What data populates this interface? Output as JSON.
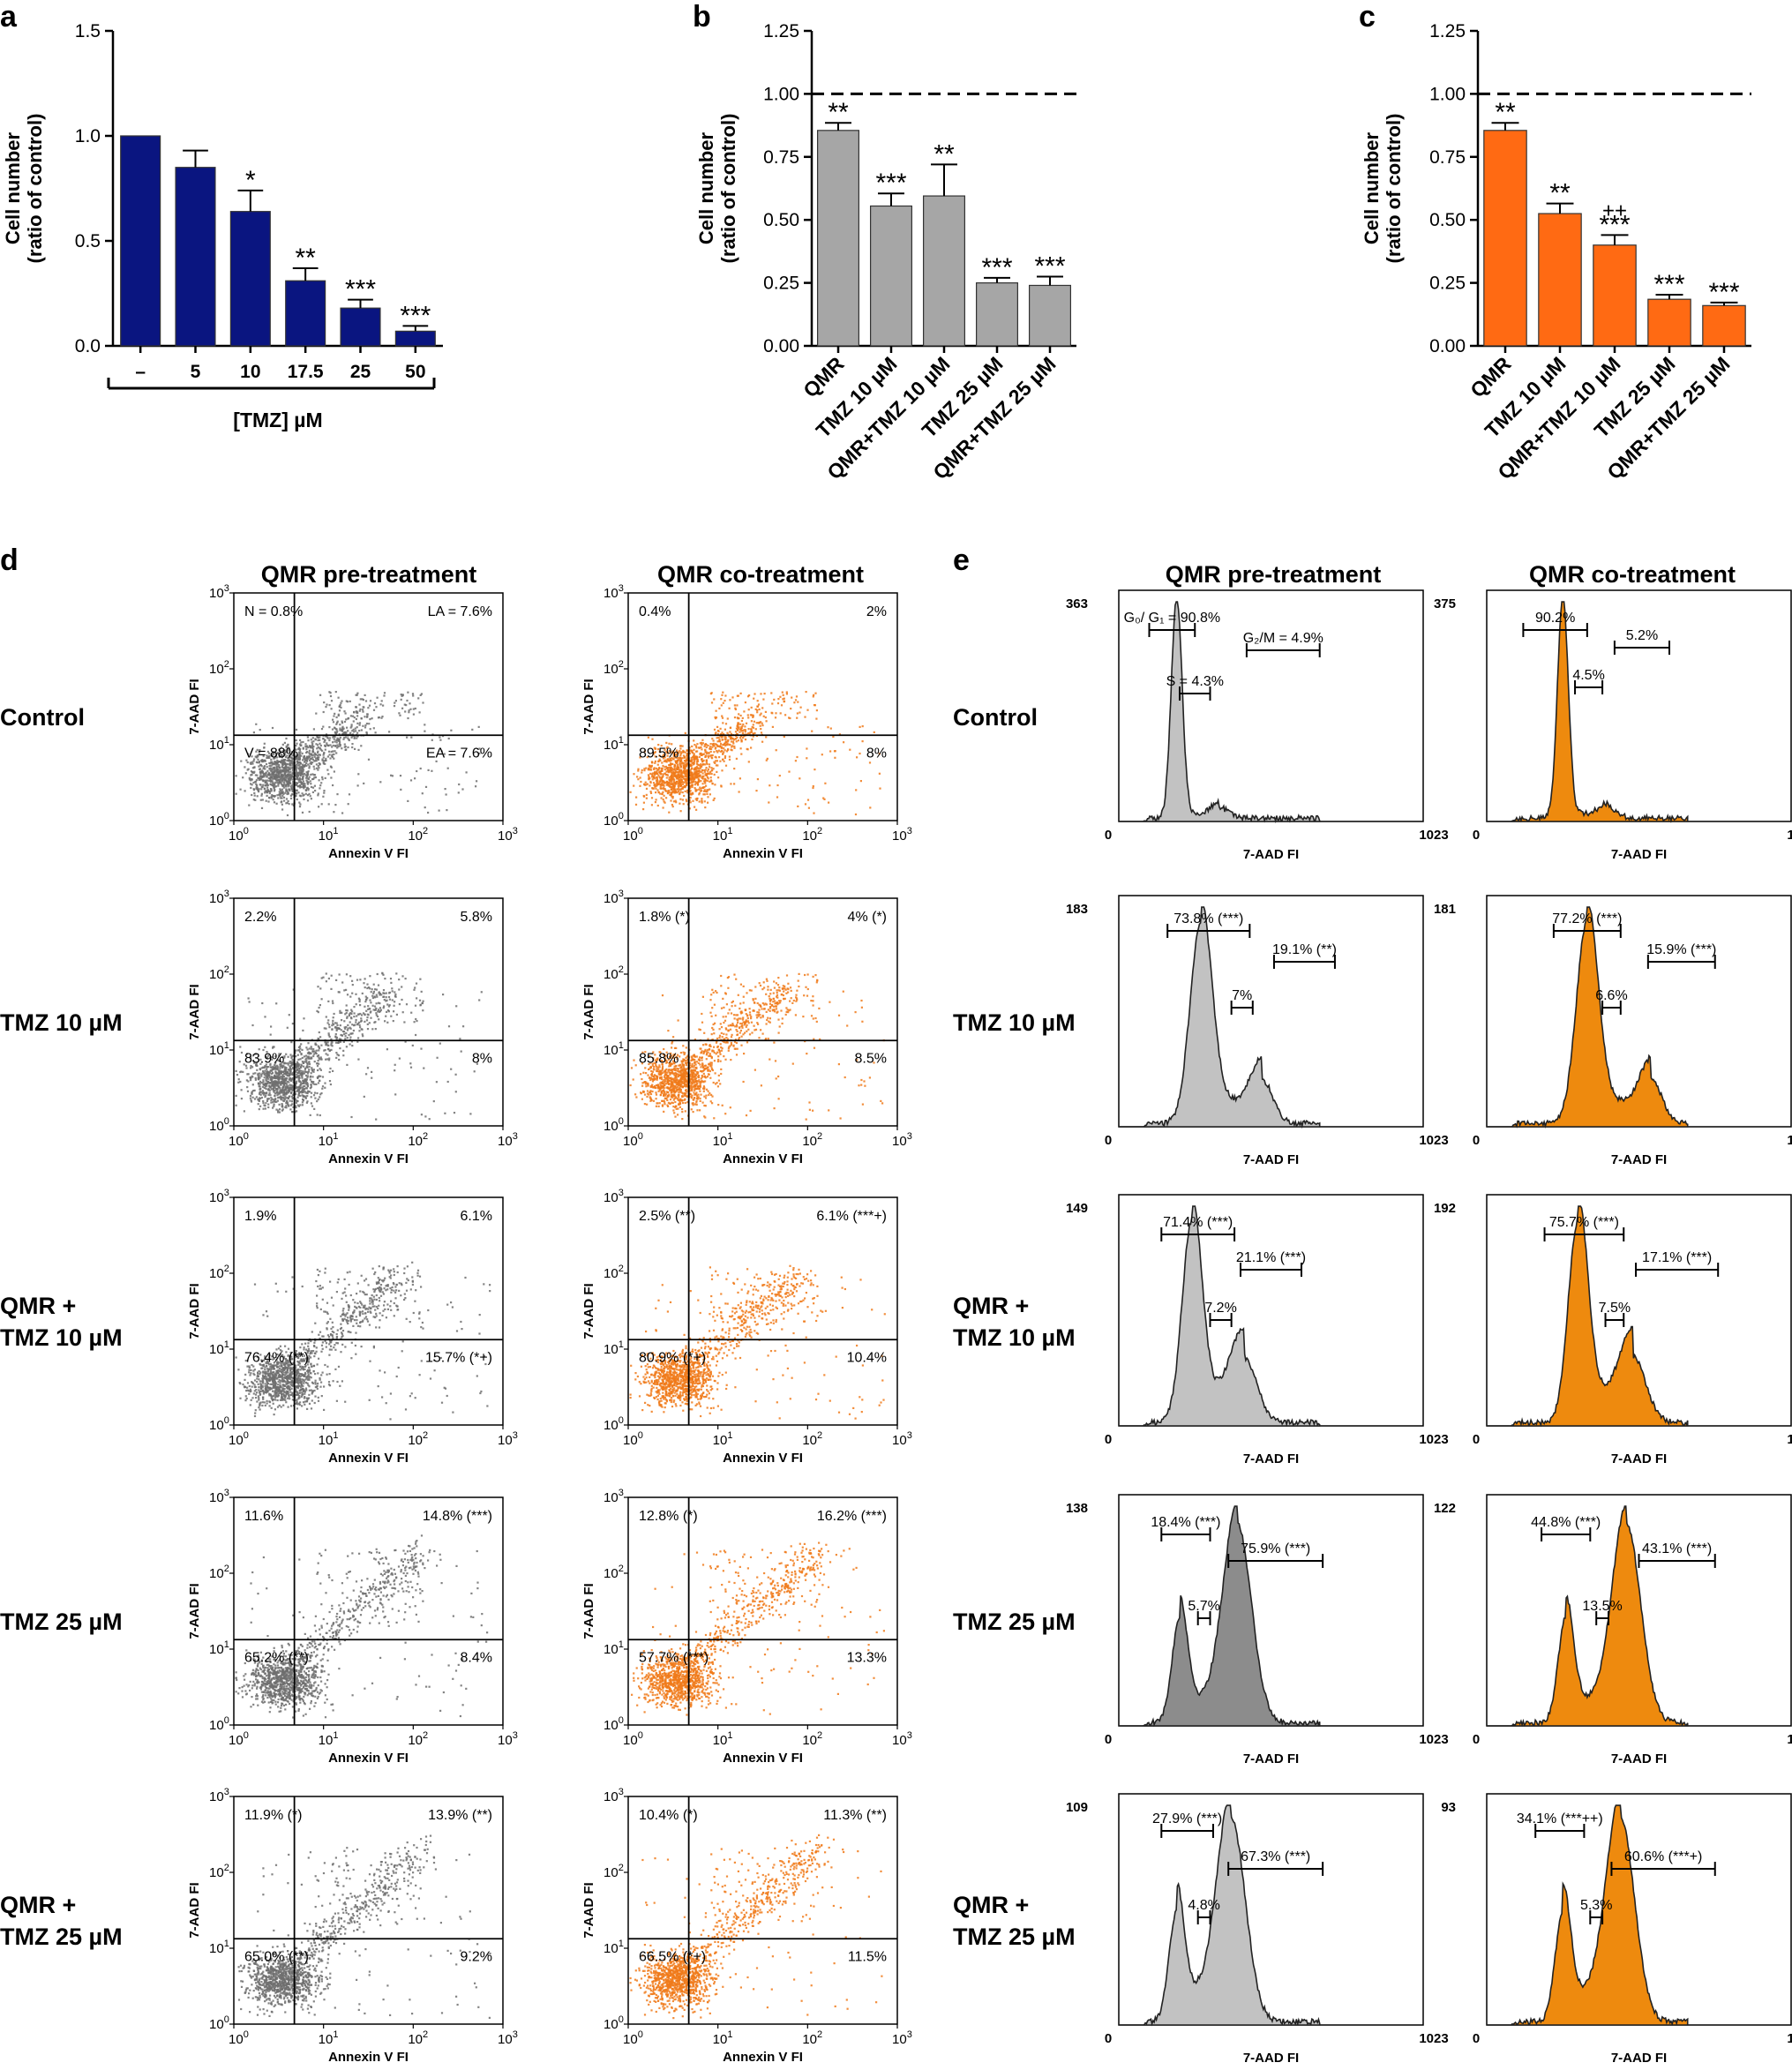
{
  "panels": {
    "a": {
      "letter": "a"
    },
    "b": {
      "letter": "b"
    },
    "c": {
      "letter": "c"
    },
    "d": {
      "letter": "d",
      "col_titles": [
        "QMR pre-treatment",
        "QMR co-treatment"
      ]
    },
    "e": {
      "letter": "e",
      "col_titles": [
        "QMR pre-treatment",
        "QMR co-treatment"
      ]
    }
  },
  "row_labels": [
    [
      "Control"
    ],
    [
      "TMZ 10 µM"
    ],
    [
      "QMR +",
      "TMZ 10 µM"
    ],
    [
      "TMZ 25 µM"
    ],
    [
      "QMR +",
      "TMZ 25 µM"
    ]
  ],
  "colors": {
    "navy": "#0a1580",
    "gray": "#a6a6a6",
    "orange": "#ff6a13",
    "scatter_gray": "#6e6e6e",
    "scatter_orange": "#f07a1a",
    "hist_gray": "#c2c2c2",
    "hist_gray_dark": "#8c8c8c",
    "hist_orange": "#ee8a0e"
  },
  "chart_data": [
    {
      "panel": "a",
      "type": "bar",
      "categories": [
        "–",
        "5",
        "10",
        "17.5",
        "25",
        "50"
      ],
      "values": [
        1.0,
        0.85,
        0.64,
        0.31,
        0.18,
        0.07
      ],
      "errors": [
        0,
        0.08,
        0.1,
        0.06,
        0.04,
        0.025
      ],
      "significance": [
        "",
        "",
        "*",
        "**",
        "***",
        "***"
      ],
      "ylim": [
        0,
        1.5
      ],
      "yticks": [
        "0.0",
        "0.5",
        "1.0",
        "1.5"
      ],
      "ylabel": [
        "Cell number",
        "(ratio of control)"
      ],
      "xlabel": "[TMZ] µM",
      "color": "#0a1580"
    },
    {
      "panel": "b",
      "type": "bar",
      "categories": [
        "QMR",
        "TMZ 10 µM",
        "QMR+TMZ 10 µM",
        "TMZ 25 µM",
        "QMR+TMZ 25 µM"
      ],
      "values": [
        0.855,
        0.555,
        0.595,
        0.25,
        0.24
      ],
      "errors": [
        0.03,
        0.05,
        0.125,
        0.02,
        0.035
      ],
      "significance": [
        "**",
        "***",
        "**",
        "***",
        "***"
      ],
      "significance_extra": [
        "",
        "",
        "",
        "",
        ""
      ],
      "reference_line": 1.0,
      "ylim": [
        0,
        1.25
      ],
      "yticks": [
        "0.00",
        "0.25",
        "0.50",
        "0.75",
        "1.00",
        "1.25"
      ],
      "ylabel": [
        "Cell number",
        "(ratio of control)"
      ],
      "color": "#a6a6a6"
    },
    {
      "panel": "c",
      "type": "bar",
      "categories": [
        "QMR",
        "TMZ 10 µM",
        "QMR+TMZ 10 µM",
        "TMZ 25 µM",
        "QMR+TMZ 25 µM"
      ],
      "values": [
        0.855,
        0.525,
        0.4,
        0.185,
        0.16
      ],
      "errors": [
        0.03,
        0.04,
        0.04,
        0.018,
        0.012
      ],
      "significance": [
        "**",
        "**",
        "***",
        "***",
        "***"
      ],
      "significance_extra": [
        "",
        "",
        "++",
        "",
        ""
      ],
      "reference_line": 1.0,
      "ylim": [
        0,
        1.25
      ],
      "yticks": [
        "0.00",
        "0.25",
        "0.50",
        "0.75",
        "1.00",
        "1.25"
      ],
      "ylabel": [
        "Cell number",
        "(ratio of control)"
      ],
      "color": "#ff6a13"
    },
    {
      "panel": "d",
      "type": "scatter",
      "xlabel": "Annexin V FI",
      "ylabel": "7-AAD FI",
      "tick_labels": [
        "10",
        "10",
        "10",
        "10"
      ],
      "tick_exponents": [
        "0",
        "1",
        "2",
        "3"
      ],
      "plots": [
        {
          "row": 0,
          "col": 0,
          "tl": "N = 0.8%",
          "tr": "LA = 7.6%",
          "bl": "V = 88%",
          "br": "EA = 7.6%",
          "color": "#6e6e6e"
        },
        {
          "row": 0,
          "col": 1,
          "tl": "0.4%",
          "tr": "2%",
          "bl": "89.5%",
          "br": "8%",
          "color": "#f07a1a"
        },
        {
          "row": 1,
          "col": 0,
          "tl": "2.2%",
          "tr": "5.8%",
          "bl": "83.9%",
          "br": "8%",
          "color": "#6e6e6e"
        },
        {
          "row": 1,
          "col": 1,
          "tl": "1.8% (*)",
          "tr": "4% (*)",
          "bl": "85.8%",
          "br": "8.5%",
          "color": "#f07a1a"
        },
        {
          "row": 2,
          "col": 0,
          "tl": "1.9%",
          "tr": "6.1%",
          "bl": "76.4% (**)",
          "br": "15.7% (*+)",
          "color": "#6e6e6e"
        },
        {
          "row": 2,
          "col": 1,
          "tl": "2.5% (**)",
          "tr": "6.1% (***+)",
          "bl": "80.9% (*+)",
          "br": "10.4%",
          "color": "#f07a1a"
        },
        {
          "row": 3,
          "col": 0,
          "tl": "11.6%",
          "tr": "14.8% (***)",
          "bl": "65.2% (**)",
          "br": "8.4%",
          "color": "#6e6e6e"
        },
        {
          "row": 3,
          "col": 1,
          "tl": "12.8% (*)",
          "tr": "16.2% (***)",
          "bl": "57.7% (***)",
          "br": "13.3%",
          "color": "#f07a1a"
        },
        {
          "row": 4,
          "col": 0,
          "tl": "11.9% (*)",
          "tr": "13.9% (**)",
          "bl": "65.0% (**)",
          "br": "9.2%",
          "color": "#6e6e6e"
        },
        {
          "row": 4,
          "col": 1,
          "tl": "10.4% (*)",
          "tr": "11.3% (**)",
          "bl": "66.5% (*+)",
          "br": "11.5%",
          "color": "#f07a1a"
        }
      ]
    },
    {
      "panel": "e",
      "type": "area",
      "xlabel": "7-AAD FI",
      "xlim": [
        0,
        1023
      ],
      "x_ticks": [
        "0",
        "1023"
      ],
      "plots": [
        {
          "row": 0,
          "col": 0,
          "ymax": "363",
          "labels": [
            "G₀/ G₁ = 90.8%",
            "G₂/M = 4.9%",
            "S = 4.3%"
          ],
          "color": "#c2c2c2"
        },
        {
          "row": 0,
          "col": 1,
          "ymax": "375",
          "labels": [
            "90.2%",
            "5.2%",
            "4.5%"
          ],
          "color": "#ee8a0e"
        },
        {
          "row": 1,
          "col": 0,
          "ymax": "183",
          "labels": [
            "73.8% (***)",
            "19.1% (**)",
            "7%"
          ],
          "color": "#c2c2c2"
        },
        {
          "row": 1,
          "col": 1,
          "ymax": "181",
          "labels": [
            "77.2% (***)",
            "15.9% (***)",
            "6.6%"
          ],
          "color": "#ee8a0e"
        },
        {
          "row": 2,
          "col": 0,
          "ymax": "149",
          "labels": [
            "71.4% (***)",
            "21.1% (***)",
            "7.2%"
          ],
          "color": "#c2c2c2"
        },
        {
          "row": 2,
          "col": 1,
          "ymax": "192",
          "labels": [
            "75.7% (***)",
            "17.1% (***)",
            "7.5%"
          ],
          "color": "#ee8a0e"
        },
        {
          "row": 3,
          "col": 0,
          "ymax": "138",
          "labels": [
            "18.4% (***)",
            "75.9% (***)",
            "5.7%"
          ],
          "color": "#8c8c8c"
        },
        {
          "row": 3,
          "col": 1,
          "ymax": "122",
          "labels": [
            "44.8% (***)",
            "43.1% (***)",
            "13.5%"
          ],
          "color": "#ee8a0e"
        },
        {
          "row": 4,
          "col": 0,
          "ymax": "109",
          "labels": [
            "27.9% (***)",
            "67.3% (***)",
            "4.8%"
          ],
          "color": "#c2c2c2"
        },
        {
          "row": 4,
          "col": 1,
          "ymax": "93",
          "labels": [
            "34.1% (***++)",
            "60.6% (***+)",
            "5.3%"
          ],
          "color": "#ee8a0e"
        }
      ]
    }
  ]
}
